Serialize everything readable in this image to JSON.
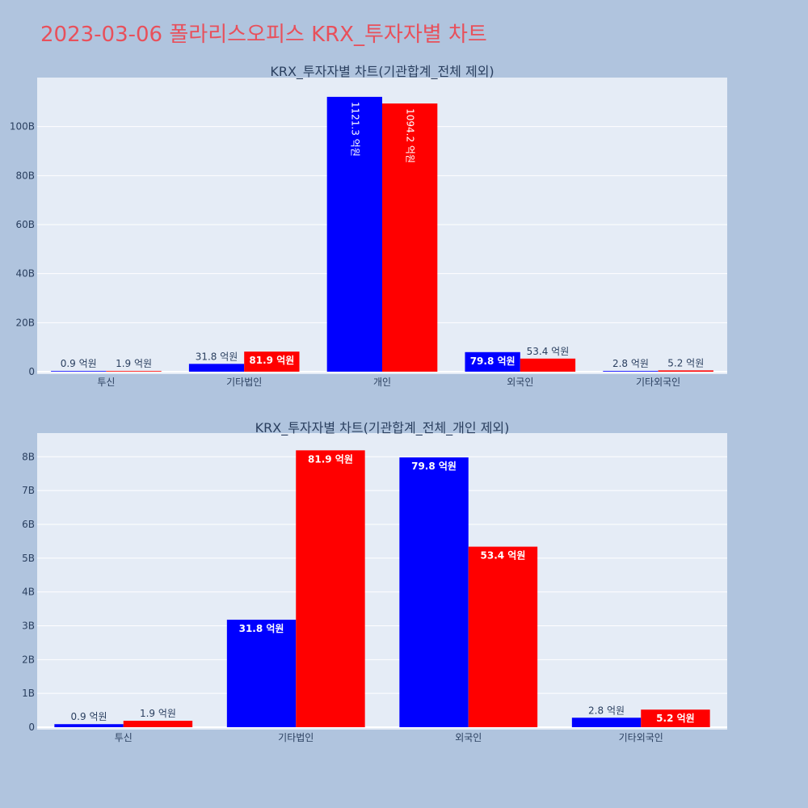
{
  "page_title": "2023-03-06 폴라리스오피스 KRX_투자자별 차트",
  "colors": {
    "background": "#b0c4de",
    "plot_bg": "#e5ecf6",
    "gridline": "#ffffff",
    "title": "#e8505b",
    "text": "#2a3f5f",
    "series_1": "#0000ff",
    "series_2": "#ff0000"
  },
  "chart_data": [
    {
      "type": "bar",
      "barmode": "group",
      "title": "KRX_투자자별 차트(기관합계_전체 제외)",
      "categories": [
        "투신",
        "기타법인",
        "개인",
        "외국인",
        "기타외국인"
      ],
      "series": [
        {
          "color": "#0000ff",
          "values": [
            90000000,
            3180000000,
            112130000000,
            7980000000,
            280000000
          ],
          "labels": [
            "0.9 억원",
            "31.8 억원",
            "1121.3 억원",
            "79.8 억원",
            "2.8 억원"
          ]
        },
        {
          "color": "#ff0000",
          "values": [
            190000000,
            8190000000,
            109420000000,
            5340000000,
            520000000
          ],
          "labels": [
            "1.9 억원",
            "81.9 억원",
            "1094.2 억원",
            "53.4 억원",
            "5.2 억원"
          ]
        }
      ],
      "ylim": [
        0,
        120000000000
      ],
      "yticks": [
        0,
        20000000000,
        40000000000,
        60000000000,
        80000000000,
        100000000000
      ],
      "ytick_labels": [
        "0",
        "20B",
        "40B",
        "60B",
        "80B",
        "100B"
      ],
      "grid": true,
      "legend": "none"
    },
    {
      "type": "bar",
      "barmode": "group",
      "title": "KRX_투자자별 차트(기관합계_전체_개인 제외)",
      "categories": [
        "투신",
        "기타법인",
        "외국인",
        "기타외국인"
      ],
      "series": [
        {
          "color": "#0000ff",
          "values": [
            90000000,
            3180000000,
            7980000000,
            280000000
          ],
          "labels": [
            "0.9 억원",
            "31.8 억원",
            "79.8 억원",
            "2.8 억원"
          ]
        },
        {
          "color": "#ff0000",
          "values": [
            190000000,
            8190000000,
            5340000000,
            520000000
          ],
          "labels": [
            "1.9 억원",
            "81.9 억원",
            "53.4 억원",
            "5.2 억원"
          ]
        }
      ],
      "ylim": [
        0,
        8700000000
      ],
      "yticks": [
        0,
        1000000000,
        2000000000,
        3000000000,
        4000000000,
        5000000000,
        6000000000,
        7000000000,
        8000000000
      ],
      "ytick_labels": [
        "0",
        "1B",
        "2B",
        "3B",
        "4B",
        "5B",
        "6B",
        "7B",
        "8B"
      ],
      "grid": true,
      "legend": "none"
    }
  ]
}
